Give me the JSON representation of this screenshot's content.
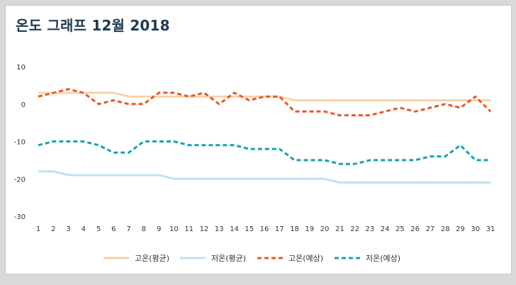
{
  "chart_data": {
    "type": "line",
    "title": "온도 그래프 12월 2018",
    "xlabel": "",
    "ylabel": "",
    "x": [
      1,
      2,
      3,
      4,
      5,
      6,
      7,
      8,
      9,
      10,
      11,
      12,
      13,
      14,
      15,
      16,
      17,
      18,
      19,
      20,
      21,
      22,
      23,
      24,
      25,
      26,
      27,
      28,
      29,
      30,
      31
    ],
    "ylim": [
      -30,
      10
    ],
    "yticks": [
      10,
      0,
      -10,
      -20,
      -30
    ],
    "grid": false,
    "legend_position": "bottom",
    "series": [
      {
        "name": "고온(평균)",
        "style": "solid",
        "color": "#f8d2a9",
        "values": [
          3,
          3,
          3,
          3,
          3,
          3,
          2,
          2,
          2,
          2,
          2,
          2,
          2,
          2,
          2,
          2,
          2,
          1,
          1,
          1,
          1,
          1,
          1,
          1,
          1,
          1,
          1,
          1,
          1,
          1,
          1
        ]
      },
      {
        "name": "저온(평균)",
        "style": "solid",
        "color": "#bfe3ef",
        "values": [
          -18,
          -18,
          -19,
          -19,
          -19,
          -19,
          -19,
          -19,
          -19,
          -20,
          -20,
          -20,
          -20,
          -20,
          -20,
          -20,
          -20,
          -20,
          -20,
          -20,
          -21,
          -21,
          -21,
          -21,
          -21,
          -21,
          -21,
          -21,
          -21,
          -21,
          -21
        ]
      },
      {
        "name": "고온(예상)",
        "style": "dashed",
        "color": "#e8582a",
        "values": [
          2,
          3,
          4,
          3,
          0,
          1,
          0,
          0,
          3,
          3,
          2,
          3,
          0,
          3,
          1,
          2,
          2,
          -2,
          -2,
          -2,
          -3,
          -3,
          -3,
          -2,
          -1,
          -2,
          -1,
          0,
          -1,
          2,
          -2
        ]
      },
      {
        "name": "저온(예상)",
        "style": "dashed",
        "color": "#17a2b0",
        "values": [
          -11,
          -10,
          -10,
          -10,
          -11,
          -13,
          -13,
          -10,
          -10,
          -10,
          -11,
          -11,
          -11,
          -11,
          -12,
          -12,
          -12,
          -15,
          -15,
          -15,
          -16,
          -16,
          -15,
          -15,
          -15,
          -15,
          -14,
          -14,
          -11,
          -15,
          -15
        ]
      }
    ]
  }
}
